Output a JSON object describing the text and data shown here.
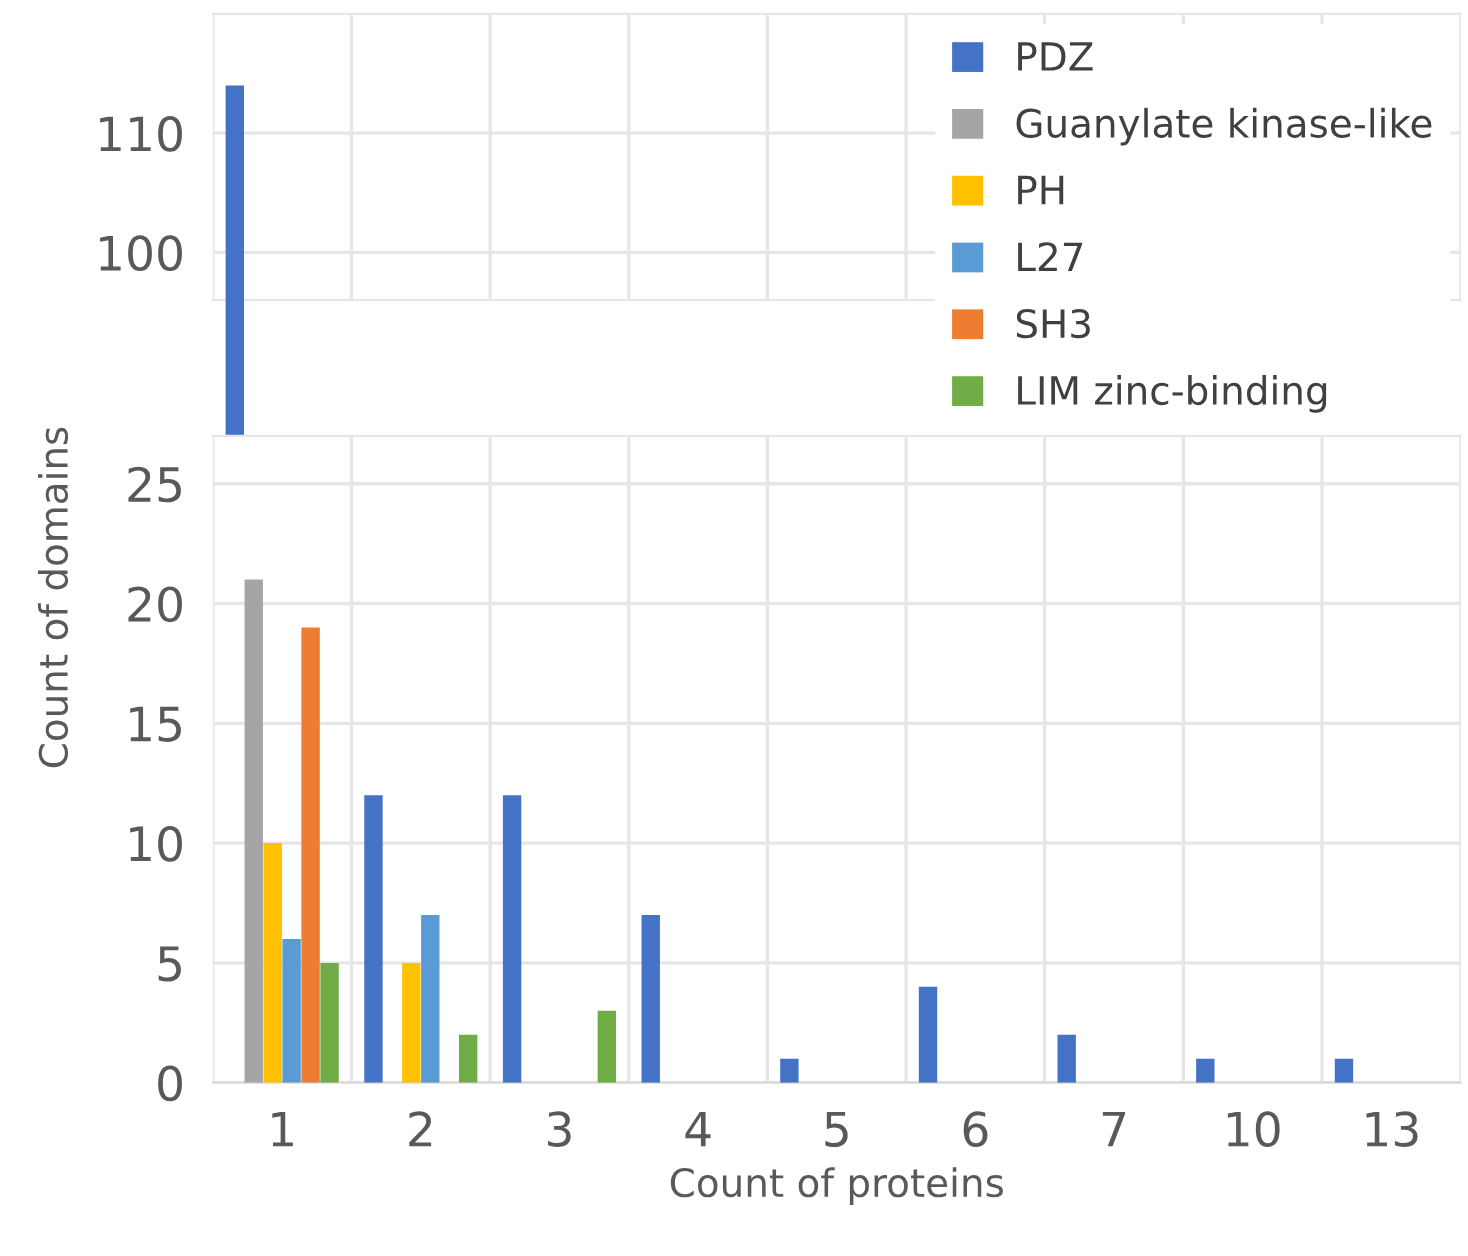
{
  "chart_data": [
    {
      "type": "bar",
      "categories": [
        "1",
        "2",
        "3",
        "4",
        "5",
        "6",
        "7",
        "10",
        "13"
      ],
      "series": [
        {
          "color": "#4472c4",
          "values": [
            114,
            null,
            null,
            null,
            null,
            null,
            null,
            null,
            null
          ]
        },
        {
          "color": "#a5a5a5",
          "values": [
            null,
            null,
            null,
            null,
            null,
            null,
            null,
            null,
            null
          ]
        },
        {
          "color": "#ffc000",
          "values": [
            null,
            null,
            null,
            null,
            null,
            null,
            null,
            null,
            null
          ]
        },
        {
          "color": "#5b9bd5",
          "values": [
            null,
            null,
            null,
            null,
            null,
            null,
            null,
            null,
            null
          ]
        },
        {
          "color": "#ed7d31",
          "values": [
            null,
            null,
            null,
            null,
            null,
            null,
            null,
            null,
            null
          ]
        },
        {
          "color": "#70ad47",
          "values": [
            null,
            null,
            null,
            null,
            null,
            null,
            null,
            null,
            null
          ]
        }
      ],
      "ylim": [
        96,
        120
      ],
      "yticks": [
        100,
        110
      ],
      "grid": true,
      "tick_labels": "y"
    },
    {
      "type": "bar",
      "xlabel": "Count of proteins",
      "ylabel": "Count of domains",
      "categories": [
        "1",
        "2",
        "3",
        "4",
        "5",
        "6",
        "7",
        "10",
        "13"
      ],
      "series": [
        {
          "name": "PDZ",
          "color": "#4472c4",
          "values": [
            null,
            12,
            12,
            7,
            1,
            4,
            2,
            1,
            1
          ]
        },
        {
          "name": "Guanylate kinase-like",
          "color": "#a5a5a5",
          "values": [
            21,
            0,
            0,
            0,
            0,
            0,
            0,
            0,
            0
          ]
        },
        {
          "name": "PH",
          "color": "#ffc000",
          "values": [
            10,
            5,
            0,
            0,
            0,
            0,
            0,
            0,
            0
          ]
        },
        {
          "name": "L27",
          "color": "#5b9bd5",
          "values": [
            6,
            7,
            0,
            0,
            0,
            0,
            0,
            0,
            0
          ]
        },
        {
          "name": "SH3",
          "color": "#ed7d31",
          "values": [
            19,
            0,
            0,
            0,
            0,
            0,
            0,
            0,
            0
          ]
        },
        {
          "name": "LIM zinc-binding",
          "color": "#70ad47",
          "values": [
            5,
            2,
            3,
            0,
            0,
            0,
            0,
            0,
            0
          ]
        }
      ],
      "ylim": [
        0,
        27
      ],
      "yticks": [
        0,
        5,
        10,
        15,
        20,
        25
      ],
      "grid": true,
      "legend": "top right"
    }
  ]
}
